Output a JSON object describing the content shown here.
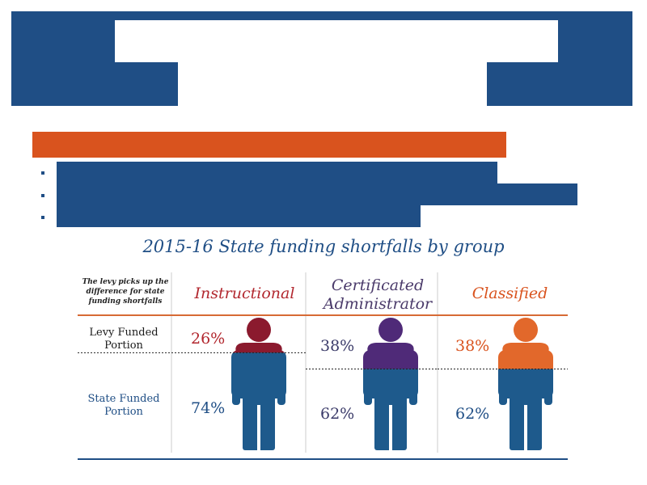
{
  "colors": {
    "banner": "#1f4e85",
    "accent_bar": "#d9531e",
    "instructional": "#8b1a2e",
    "certificated": "#4f2a78",
    "classified": "#e2682b",
    "state_funded": "#1e5a8c",
    "rule_orange": "#d76a35",
    "bottom_rule": "#1f4e85"
  },
  "chart_data": {
    "type": "bar",
    "title": "2015-16 State funding shortfalls by group",
    "note": "The levy picks up the difference for state funding shortfalls",
    "row_labels": {
      "levy": "Levy Funded Portion",
      "state": "State Funded Portion"
    },
    "categories": [
      "Instructional",
      "Certificated Administrator",
      "Classified"
    ],
    "series": [
      {
        "name": "Levy Funded Portion",
        "values": [
          26,
          38,
          38
        ]
      },
      {
        "name": "State Funded Portion",
        "values": [
          74,
          62,
          62
        ]
      }
    ],
    "value_labels": {
      "levy": [
        "26%",
        "38%",
        "38%"
      ],
      "state": [
        "74%",
        "62%",
        "62%"
      ]
    },
    "ylim": [
      0,
      100
    ]
  }
}
